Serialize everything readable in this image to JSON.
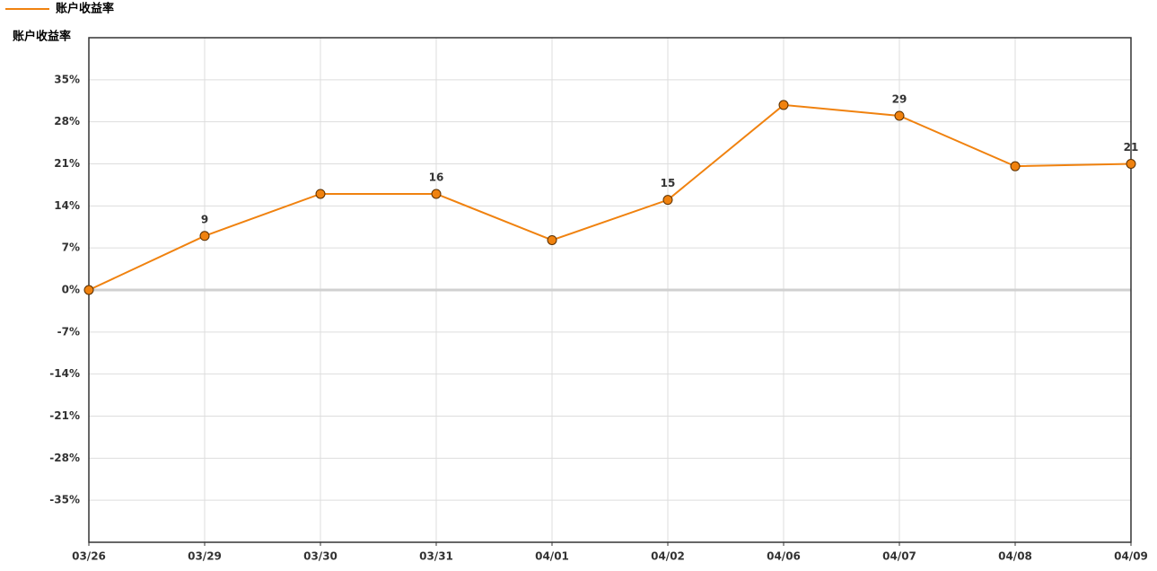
{
  "chart_data": {
    "type": "line",
    "y_label": "账户收益率",
    "categories": [
      "03/26",
      "03/29",
      "03/30",
      "03/31",
      "04/01",
      "04/02",
      "04/06",
      "04/07",
      "04/08",
      "04/09"
    ],
    "series": [
      {
        "name": "账户收益率",
        "color": "#f0820f",
        "values": [
          0,
          9,
          16,
          16,
          8.3,
          15,
          30.8,
          29,
          20.6,
          21
        ],
        "value_labels": [
          null,
          "9",
          null,
          "16",
          null,
          "15",
          null,
          "29",
          null,
          "21"
        ]
      }
    ],
    "ylim": [
      -42,
      42
    ],
    "yticks": [
      {
        "value": -35,
        "label": "-35%"
      },
      {
        "value": -28,
        "label": "-28%"
      },
      {
        "value": -21,
        "label": "-21%"
      },
      {
        "value": -14,
        "label": "-14%"
      },
      {
        "value": -7,
        "label": "-7%"
      },
      {
        "value": 0,
        "label": "0%"
      },
      {
        "value": 7,
        "label": "7%"
      },
      {
        "value": 14,
        "label": "14%"
      },
      {
        "value": 21,
        "label": "21%"
      },
      {
        "value": 28,
        "label": "28%"
      },
      {
        "value": 35,
        "label": "35%"
      }
    ],
    "grid": true,
    "legend": "top-left"
  }
}
